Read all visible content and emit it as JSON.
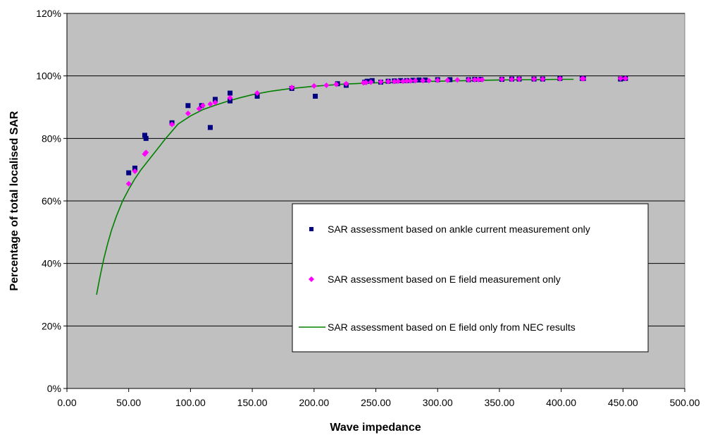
{
  "chart_data": {
    "type": "scatter",
    "xlabel": "Wave impedance",
    "ylabel": "Percentage of total localised SAR",
    "xlim": [
      0,
      500
    ],
    "ylim": [
      0,
      120
    ],
    "x_ticks": [
      "0.00",
      "50.00",
      "100.00",
      "150.00",
      "200.00",
      "250.00",
      "300.00",
      "350.00",
      "400.00",
      "450.00",
      "500.00"
    ],
    "y_ticks": [
      "0%",
      "20%",
      "40%",
      "60%",
      "80%",
      "100%",
      "120%"
    ],
    "grid": "horizontal",
    "plot_background": "#c0c0c0",
    "legend_position": "center-right",
    "series": [
      {
        "name": "SAR assessment based on ankle current measurement only",
        "type": "scatter",
        "marker": "square",
        "color": "#000080",
        "x": [
          50,
          55,
          63,
          64,
          85,
          98,
          109,
          116,
          120,
          132,
          132,
          154,
          182,
          201,
          219,
          226,
          241,
          243,
          247,
          254,
          260,
          265,
          270,
          275,
          280,
          285,
          290,
          300,
          310,
          325,
          330,
          335,
          352,
          360,
          366,
          378,
          385,
          399,
          417,
          418,
          448,
          452
        ],
        "y": [
          69,
          70.5,
          81,
          80,
          85,
          90.5,
          90.5,
          83.5,
          92.5,
          94.5,
          92,
          93.5,
          96,
          93.5,
          97.5,
          97,
          98,
          98.3,
          98.5,
          98,
          98.3,
          98.4,
          98.5,
          98.5,
          98.6,
          98.7,
          98.7,
          98.8,
          98.8,
          98.8,
          98.9,
          98.9,
          98.9,
          99,
          99,
          99,
          99,
          99.2,
          99.2,
          99.2,
          99,
          99.2
        ]
      },
      {
        "name": "SAR assessment based on E field measurement only",
        "type": "scatter",
        "marker": "diamond",
        "color": "#ff00ff",
        "x": [
          50,
          55,
          63,
          64,
          85,
          98,
          107,
          110,
          116,
          120,
          132,
          154,
          182,
          200,
          210,
          218,
          226,
          240,
          242,
          246,
          254,
          260,
          265,
          268,
          272,
          275,
          278,
          282,
          288,
          293,
          300,
          308,
          316,
          325,
          330,
          333,
          336,
          352,
          360,
          366,
          378,
          385,
          399,
          417,
          418,
          448,
          452
        ],
        "y": [
          65.5,
          69.5,
          75,
          75.5,
          84.5,
          88,
          89.5,
          90.5,
          91,
          91.5,
          93,
          94.5,
          96.3,
          96.8,
          97,
          97.3,
          97.5,
          97.8,
          97.9,
          98,
          98.1,
          98.2,
          98.2,
          98.3,
          98.3,
          98.4,
          98.4,
          98.5,
          98.5,
          98.5,
          98.6,
          98.6,
          98.7,
          98.7,
          98.8,
          98.8,
          98.8,
          98.9,
          98.9,
          99,
          99,
          99,
          99.1,
          99.1,
          99.1,
          99.2,
          99.2
        ]
      },
      {
        "name": "SAR assessment based on E field only from NEC results",
        "type": "line",
        "color": "#008000",
        "x": [
          24,
          26,
          28,
          30,
          33,
          36,
          40,
          45,
          50,
          55,
          60,
          65,
          70,
          80,
          90,
          100,
          110,
          120,
          130,
          140,
          150,
          165,
          180,
          200,
          225,
          250,
          275,
          300,
          325,
          350,
          375,
          400,
          410
        ],
        "y": [
          30,
          34.2,
          38.1,
          41.7,
          46.4,
          50.5,
          55.1,
          59.9,
          63.7,
          67.1,
          70.0,
          72.5,
          75.0,
          80.0,
          84.6,
          87.2,
          89.2,
          90.6,
          91.9,
          93.0,
          94.0,
          95.1,
          95.9,
          96.7,
          97.4,
          97.8,
          98.1,
          98.3,
          98.5,
          98.7,
          98.8,
          98.9,
          98.9
        ]
      }
    ]
  }
}
